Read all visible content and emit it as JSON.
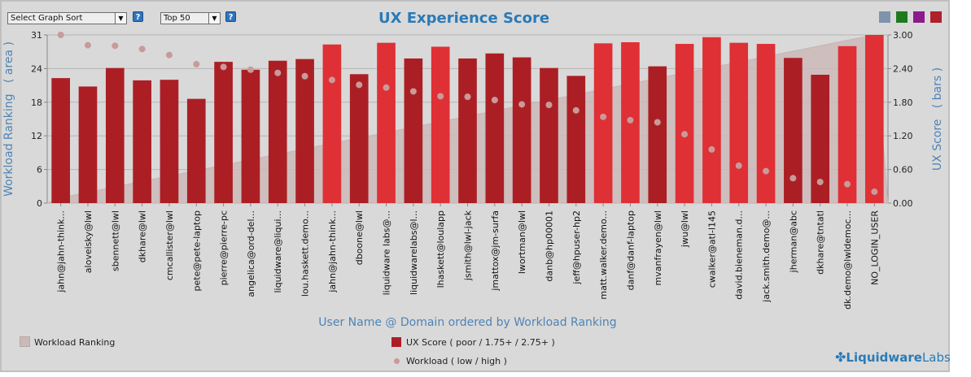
{
  "controls": {
    "sort_select": "Select Graph Sort",
    "top_select": "Top 50",
    "help_label": "?"
  },
  "legend_swatch_colors": [
    "#7f93ab",
    "#1f7a1f",
    "#8c1a8c",
    "#b0202a"
  ],
  "brand": {
    "name_a": "Liquidware",
    "name_b": "Labs"
  },
  "legend": {
    "workload_ranking": "Workload Ranking",
    "ux_score": "UX Score ( poor / 1.75+ / 2.75+ )",
    "workload": "Workload ( low / high )"
  },
  "colors": {
    "bar_dark": "#ab1f24",
    "bar_bright": "#df3035",
    "dot": "#c99a9a",
    "area": "#cbb9b9",
    "axis_title": "#4f84b6"
  },
  "chart_data": {
    "type": "bar",
    "title": "UX Experience Score",
    "xlabel": "User Name @ Domain ordered by Workload Ranking",
    "ylabel_left": "Workload Ranking   ( area )",
    "ylabel_right": "UX Score   ( bars )",
    "left_ticks": [
      "31",
      "24",
      "18",
      "12",
      "6",
      "0"
    ],
    "right_ticks": [
      "3.00",
      "2.40",
      "1.80",
      "1.20",
      "0.60",
      "0.00"
    ],
    "left_ylim": [
      0,
      31
    ],
    "right_ylim": [
      0,
      3.0
    ],
    "categories": [
      "jahn@jahn-think...",
      "aloveisky@lwl",
      "sbennett@lwl",
      "dkhare@lwl",
      "cmcallister@lwl",
      "pete@pete-laptop",
      "pierre@pierre-pc",
      "angelica@ord-del...",
      "liquidware@liqui...",
      "lou.haskett.demo...",
      "jahn@jahn-think...",
      "dboone@lwl",
      "liquidware labs@...",
      "liquidwarelabs@l...",
      "lhaskett@loulapp",
      "jsmith@lwl-jack",
      "jmattox@jm-surfa",
      "lwortman@lwl",
      "danb@hp00001",
      "jeff@hpuser-hp2",
      "matt.walker.demo...",
      "danf@danf-laptop",
      "mvanfrayen@lwl",
      "jwu@lwl",
      "cwalker@atl-l145",
      "david.bieneman.d...",
      "jack.smith.demo@...",
      "jherman@abc",
      "dkhare@tntatl",
      "dk.demo@lwldemoc...",
      "NO_LOGIN_USER"
    ],
    "series": [
      {
        "name": "UX Score ( poor / 1.75+ / 2.75+ )",
        "axis": "right",
        "values": [
          2.23,
          2.08,
          2.41,
          2.19,
          2.2,
          1.86,
          2.52,
          2.38,
          2.54,
          2.57,
          2.83,
          2.3,
          2.86,
          2.58,
          2.79,
          2.58,
          2.67,
          2.6,
          2.41,
          2.27,
          2.85,
          2.87,
          2.44,
          2.84,
          2.96,
          2.86,
          2.84,
          2.59,
          2.29,
          2.8,
          3.0
        ]
      },
      {
        "name": "Workload ( low / high )",
        "axis": "left",
        "values": [
          31,
          29.1,
          29,
          28.4,
          27.3,
          25.6,
          25.1,
          24.6,
          24,
          23.4,
          22.7,
          21.8,
          21.3,
          20.6,
          19.7,
          19.6,
          19,
          18.2,
          18.1,
          17.1,
          15.9,
          15.3,
          14.9,
          12.7,
          9.9,
          6.9,
          5.9,
          4.6,
          3.9,
          3.5,
          2.1
        ]
      },
      {
        "name": "Workload Ranking",
        "axis": "left",
        "type": "area",
        "values": [
          1,
          2,
          3,
          4,
          5,
          6,
          7,
          8,
          9,
          10,
          11,
          12,
          13,
          14,
          15,
          16,
          17,
          18,
          19,
          20,
          21,
          22,
          23,
          24,
          25,
          26,
          27,
          28,
          29,
          30,
          31
        ]
      }
    ],
    "bar_bright_flags": [
      0,
      0,
      0,
      0,
      0,
      0,
      0,
      0,
      0,
      0,
      1,
      0,
      1,
      0,
      1,
      0,
      0,
      0,
      0,
      0,
      1,
      1,
      0,
      1,
      1,
      1,
      1,
      0,
      0,
      1,
      1
    ],
    "grid": true
  }
}
